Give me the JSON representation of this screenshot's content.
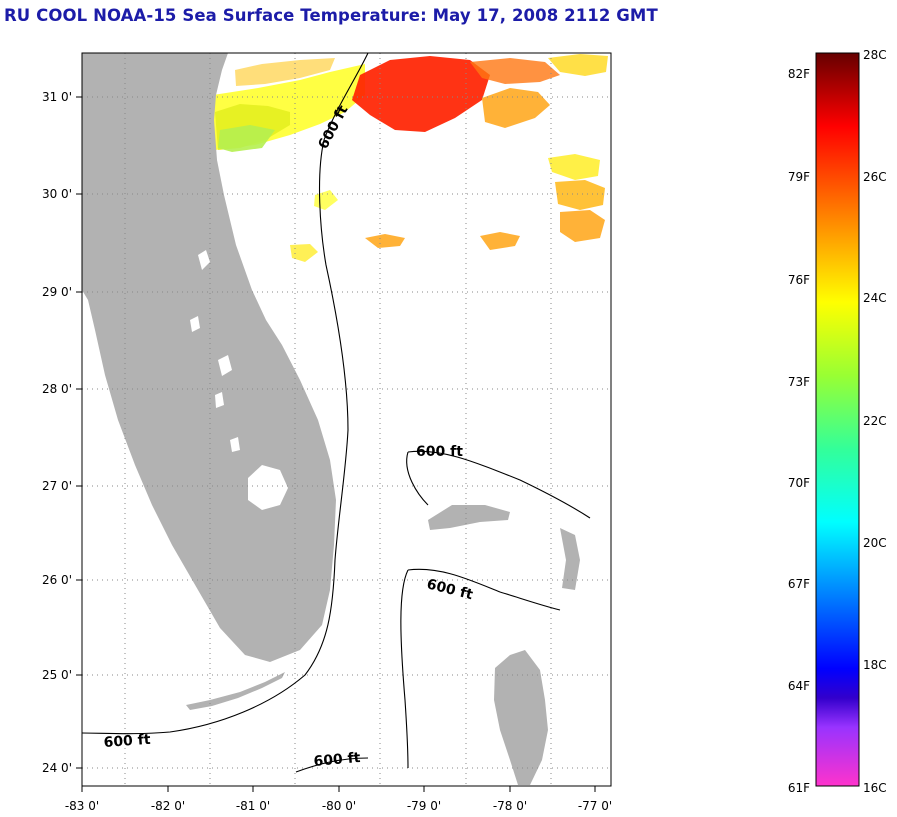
{
  "title": "RU COOL  NOAA-15  Sea Surface Temperature:  May 17, 2008 2112 GMT",
  "map": {
    "lat_range": [
      23.85,
      31.45
    ],
    "lon_range": [
      -83.0,
      -76.85
    ],
    "lat_ticks": [
      "31 0'",
      "30 0'",
      "29 0'",
      "28 0'",
      "27 0'",
      "26 0'",
      "25 0'",
      "24 0'"
    ],
    "lon_ticks": [
      "-83 0'",
      "-82 0'",
      "-81 0'",
      "-80 0'",
      "-79 0'",
      "-78 0'",
      "-77 0'"
    ],
    "land_color": "#b2b2b2",
    "grid": "dotted"
  },
  "isobath": {
    "label": "600 ft",
    "labels": [
      "600 ft",
      "600 ft",
      "600 ft",
      "600 ft",
      "600 ft"
    ]
  },
  "colorbar": {
    "fahrenheit_labels": [
      "82F",
      "79F",
      "76F",
      "73F",
      "70F",
      "67F",
      "64F",
      "61F"
    ],
    "celsius_labels": [
      "28C",
      "26C",
      "24C",
      "22C",
      "20C",
      "18C",
      "16C"
    ],
    "range_c": [
      16,
      28
    ],
    "colors": [
      "#ff33cc",
      "#9933ff",
      "#0000ff",
      "#0099ff",
      "#00ffff",
      "#33ff99",
      "#99ff33",
      "#ffff00",
      "#ffaa00",
      "#ff5500",
      "#ff0000",
      "#aa0000",
      "#660000"
    ]
  }
}
